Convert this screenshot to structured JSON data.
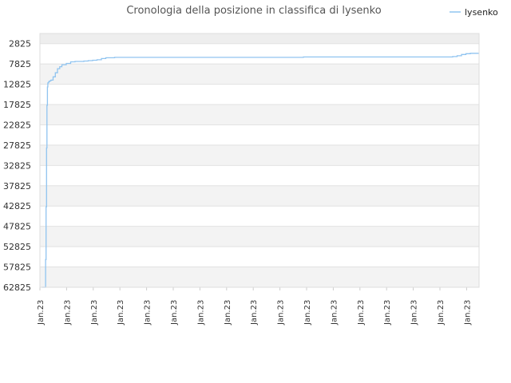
{
  "chart_data": {
    "type": "line",
    "title": "Cronologia della posizione in classifica di lysenko",
    "legend_position": "top-right",
    "grid": true,
    "y_inverted": true,
    "ylim": [
      62825,
      325
    ],
    "y_ticks": [
      2825,
      7825,
      12825,
      17825,
      22825,
      27825,
      32825,
      37825,
      42825,
      47825,
      52825,
      57825,
      62825
    ],
    "x_tick_labels": [
      "Jan.23",
      "Jan.23",
      "Jan.23",
      "Jan.23",
      "Jan.23",
      "Jan.23",
      "Jan.23",
      "Jan.23",
      "Jan.23",
      "Jan.23",
      "Jan.23",
      "Jan.23",
      "Jan.23",
      "Jan.23",
      "Jan.23",
      "Jan.23",
      "Jan.23"
    ],
    "series": [
      {
        "name": "lysenko",
        "color": "#90c4f0",
        "x": [
          0.005,
          0.012,
          0.013,
          0.014,
          0.015,
          0.016,
          0.017,
          0.018,
          0.02,
          0.022,
          0.025,
          0.03,
          0.035,
          0.04,
          0.045,
          0.05,
          0.06,
          0.07,
          0.08,
          0.09,
          0.1,
          0.11,
          0.12,
          0.13,
          0.14,
          0.15,
          0.17,
          0.2,
          0.25,
          0.3,
          0.4,
          0.5,
          0.55,
          0.6,
          0.65,
          0.7,
          0.75,
          0.8,
          0.85,
          0.9,
          0.92,
          0.94,
          0.95,
          0.96,
          0.97,
          0.98,
          1.0
        ],
        "values": [
          62825,
          62825,
          56000,
          43000,
          28500,
          18000,
          13500,
          12500,
          12200,
          12000,
          11800,
          11000,
          10000,
          9000,
          8500,
          8000,
          7700,
          7300,
          7200,
          7200,
          7100,
          7000,
          6900,
          6800,
          6500,
          6300,
          6200,
          6200,
          6200,
          6200,
          6200,
          6200,
          6200,
          6100,
          6100,
          6100,
          6100,
          6100,
          6100,
          6100,
          6100,
          6000,
          5800,
          5500,
          5300,
          5200,
          5200
        ]
      }
    ]
  }
}
